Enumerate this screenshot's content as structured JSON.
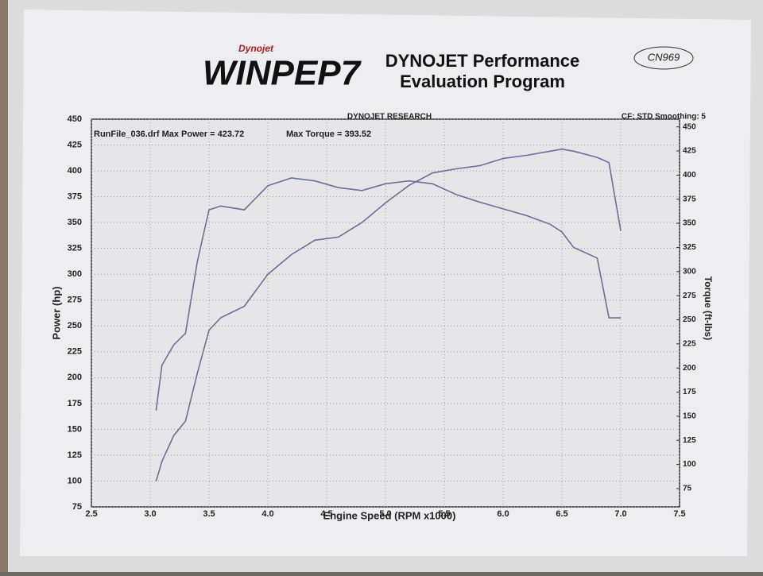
{
  "chart_data": {
    "type": "line",
    "logo_brand": "Dynojet",
    "logo_text": "WINPEP7",
    "heading": [
      "DYNOJET Performance",
      "Evaluation Program"
    ],
    "handwritten_note": "CN969",
    "title": "DYNOJET RESEARCH",
    "settings_text": "CF: STD  Smoothing: 5",
    "annotations": [
      "RunFile_036.drf Max Power = 423.72",
      "Max Torque = 393.52"
    ],
    "xlabel": "Engine Speed (RPM x1000)",
    "ylabel": "Power (hp)",
    "y2label": "Torque (ft-lbs)",
    "x": [
      3.05,
      3.1,
      3.2,
      3.3,
      3.4,
      3.5,
      3.6,
      3.8,
      4.0,
      4.2,
      4.4,
      4.6,
      4.8,
      5.0,
      5.2,
      5.4,
      5.6,
      5.8,
      6.0,
      6.2,
      6.4,
      6.5,
      6.6,
      6.8,
      6.9,
      7.0
    ],
    "series": [
      {
        "color": "#6b6f9c",
        "values": [
          100,
          119,
          144,
          158,
          204,
          246,
          258,
          269,
          300,
          319,
          333,
          336,
          350,
          369,
          386,
          398,
          402,
          405,
          412,
          415,
          419,
          421,
          419,
          413,
          408,
          342
        ]
      },
      {
        "color": "#6b6f9c",
        "axis": "y2",
        "values": [
          156,
          203,
          224,
          236,
          310,
          364,
          368,
          364,
          389,
          397,
          394,
          387,
          384,
          391,
          394,
          391,
          380,
          372,
          365,
          358,
          349,
          341,
          325,
          314,
          252,
          252
        ]
      }
    ],
    "xlim": [
      2.5,
      7.5
    ],
    "xticks": [
      2.5,
      {
        "value": 3,
        "label": "3.0"
      },
      3.5,
      {
        "value": 4,
        "label": "4.0"
      },
      4.5,
      {
        "value": 5,
        "label": "5.0"
      },
      5.5,
      {
        "value": 6,
        "label": "6.0"
      },
      6.5,
      {
        "value": 7,
        "label": "7.0"
      },
      7.5
    ],
    "ylim": [
      75,
      450
    ],
    "yticks": [
      75,
      100,
      125,
      150,
      175,
      200,
      225,
      250,
      275,
      300,
      325,
      350,
      375,
      400,
      425,
      450
    ],
    "y2lim": [
      56,
      458
    ],
    "y2ticks": [
      75,
      100,
      125,
      150,
      175,
      200,
      225,
      250,
      275,
      300,
      325,
      350,
      375,
      400,
      425,
      450
    ],
    "grid": true
  }
}
